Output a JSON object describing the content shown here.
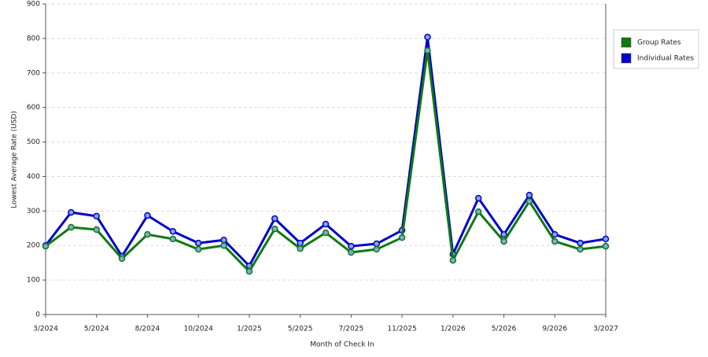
{
  "chart_data": {
    "type": "line",
    "y_label": "Lowest Average Rate (USD)",
    "x_label": "Month of Check In",
    "categories": [
      "3/2024",
      null,
      "5/2024",
      null,
      "8/2024",
      null,
      "10/2024",
      null,
      "1/2025",
      null,
      "5/2025",
      null,
      "7/2025",
      null,
      "11/2025",
      null,
      "1/2026",
      null,
      "5/2026",
      null,
      "9/2026",
      null,
      "3/2027"
    ],
    "series": [
      {
        "name": "Group Rates",
        "color": "#0f7a0f",
        "values": [
          198,
          253,
          246,
          162,
          232,
          219,
          189,
          200,
          125,
          248,
          191,
          237,
          180,
          189,
          223,
          765,
          157,
          298,
          212,
          328,
          212,
          189,
          198
        ]
      },
      {
        "name": "Individual Rates",
        "color": "#0000cc",
        "values": [
          200,
          296,
          285,
          169,
          287,
          241,
          207,
          216,
          141,
          278,
          207,
          262,
          198,
          205,
          244,
          804,
          175,
          337,
          232,
          346,
          232,
          207,
          219
        ]
      }
    ],
    "ylim": [
      0,
      900
    ],
    "yticks": [
      0,
      100,
      200,
      300,
      400,
      500,
      600,
      700,
      800,
      900
    ],
    "grid": true,
    "legend": "right"
  }
}
